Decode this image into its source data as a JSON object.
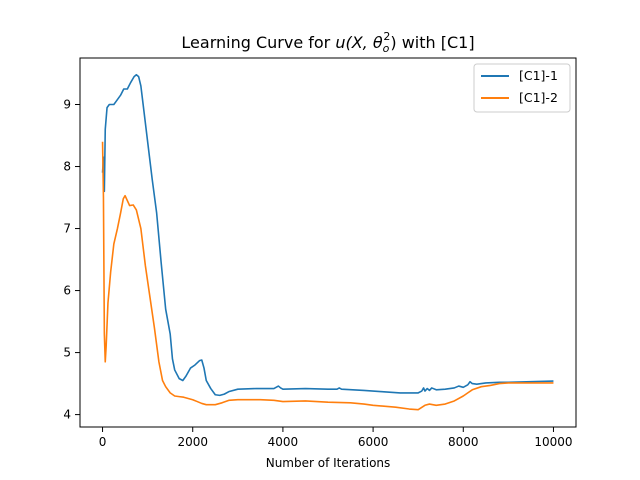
{
  "chart_data": {
    "type": "line",
    "title": "Learning Curve for u(X, θo²) with [C1]",
    "title_parts": {
      "prefix": "Learning Curve for ",
      "math_open": "u(X, θ",
      "math_sub": "o",
      "math_sup": "2",
      "math_close": ")",
      "suffix": " with [C1]"
    },
    "xlabel": "Number of Iterations",
    "ylabel": "",
    "xlim": [
      -500,
      10500
    ],
    "ylim": [
      3.8,
      9.75
    ],
    "xticks": [
      0,
      2000,
      4000,
      6000,
      8000,
      10000
    ],
    "xtick_labels": [
      "0",
      "2000",
      "4000",
      "6000",
      "8000",
      "10000"
    ],
    "yticks": [
      4,
      5,
      6,
      7,
      8,
      9
    ],
    "ytick_labels": [
      "4",
      "5",
      "6",
      "7",
      "8",
      "9"
    ],
    "grid": false,
    "legend_position": "top-right",
    "series": [
      {
        "name": "[C1]-1",
        "color": "#1f77b4",
        "points": [
          [
            0,
            7.9
          ],
          [
            20,
            8.15
          ],
          [
            40,
            7.6
          ],
          [
            60,
            8.6
          ],
          [
            100,
            8.95
          ],
          [
            150,
            9.0
          ],
          [
            250,
            9.0
          ],
          [
            300,
            9.05
          ],
          [
            400,
            9.15
          ],
          [
            470,
            9.25
          ],
          [
            550,
            9.25
          ],
          [
            620,
            9.35
          ],
          [
            700,
            9.45
          ],
          [
            750,
            9.48
          ],
          [
            800,
            9.45
          ],
          [
            850,
            9.3
          ],
          [
            900,
            9.0
          ],
          [
            1000,
            8.4
          ],
          [
            1100,
            7.8
          ],
          [
            1200,
            7.25
          ],
          [
            1300,
            6.45
          ],
          [
            1400,
            5.7
          ],
          [
            1450,
            5.5
          ],
          [
            1500,
            5.3
          ],
          [
            1550,
            4.9
          ],
          [
            1600,
            4.72
          ],
          [
            1700,
            4.58
          ],
          [
            1780,
            4.55
          ],
          [
            1850,
            4.62
          ],
          [
            1950,
            4.75
          ],
          [
            2050,
            4.8
          ],
          [
            2150,
            4.87
          ],
          [
            2200,
            4.88
          ],
          [
            2250,
            4.75
          ],
          [
            2300,
            4.55
          ],
          [
            2400,
            4.42
          ],
          [
            2500,
            4.32
          ],
          [
            2600,
            4.31
          ],
          [
            2700,
            4.33
          ],
          [
            2800,
            4.37
          ],
          [
            3000,
            4.41
          ],
          [
            3400,
            4.42
          ],
          [
            3800,
            4.42
          ],
          [
            3900,
            4.46
          ],
          [
            3950,
            4.43
          ],
          [
            4000,
            4.41
          ],
          [
            4500,
            4.42
          ],
          [
            5000,
            4.41
          ],
          [
            5200,
            4.41
          ],
          [
            5250,
            4.43
          ],
          [
            5300,
            4.41
          ],
          [
            5800,
            4.39
          ],
          [
            6200,
            4.37
          ],
          [
            6600,
            4.35
          ],
          [
            7000,
            4.35
          ],
          [
            7080,
            4.38
          ],
          [
            7120,
            4.43
          ],
          [
            7150,
            4.38
          ],
          [
            7200,
            4.42
          ],
          [
            7250,
            4.39
          ],
          [
            7300,
            4.43
          ],
          [
            7400,
            4.4
          ],
          [
            7600,
            4.41
          ],
          [
            7800,
            4.43
          ],
          [
            7900,
            4.46
          ],
          [
            8000,
            4.44
          ],
          [
            8100,
            4.48
          ],
          [
            8150,
            4.53
          ],
          [
            8200,
            4.5
          ],
          [
            8300,
            4.49
          ],
          [
            8500,
            4.51
          ],
          [
            8800,
            4.52
          ],
          [
            9000,
            4.52
          ],
          [
            9500,
            4.53
          ],
          [
            10000,
            4.54
          ]
        ]
      },
      {
        "name": "[C1]-2",
        "color": "#ff7f0e",
        "points": [
          [
            0,
            8.4
          ],
          [
            20,
            7.5
          ],
          [
            40,
            5.3
          ],
          [
            60,
            4.85
          ],
          [
            80,
            5.1
          ],
          [
            120,
            5.8
          ],
          [
            180,
            6.3
          ],
          [
            250,
            6.75
          ],
          [
            330,
            7.0
          ],
          [
            400,
            7.25
          ],
          [
            460,
            7.48
          ],
          [
            500,
            7.53
          ],
          [
            550,
            7.45
          ],
          [
            600,
            7.37
          ],
          [
            680,
            7.38
          ],
          [
            750,
            7.3
          ],
          [
            850,
            7.0
          ],
          [
            950,
            6.4
          ],
          [
            1050,
            5.9
          ],
          [
            1150,
            5.4
          ],
          [
            1250,
            4.85
          ],
          [
            1330,
            4.55
          ],
          [
            1400,
            4.45
          ],
          [
            1500,
            4.35
          ],
          [
            1600,
            4.3
          ],
          [
            1700,
            4.29
          ],
          [
            1800,
            4.28
          ],
          [
            1900,
            4.26
          ],
          [
            2000,
            4.24
          ],
          [
            2100,
            4.21
          ],
          [
            2200,
            4.18
          ],
          [
            2300,
            4.16
          ],
          [
            2500,
            4.16
          ],
          [
            2650,
            4.19
          ],
          [
            2800,
            4.23
          ],
          [
            3000,
            4.24
          ],
          [
            3500,
            4.24
          ],
          [
            3800,
            4.23
          ],
          [
            4000,
            4.21
          ],
          [
            4500,
            4.22
          ],
          [
            5000,
            4.2
          ],
          [
            5500,
            4.19
          ],
          [
            5800,
            4.17
          ],
          [
            6000,
            4.15
          ],
          [
            6500,
            4.12
          ],
          [
            6800,
            4.09
          ],
          [
            7000,
            4.08
          ],
          [
            7150,
            4.15
          ],
          [
            7250,
            4.17
          ],
          [
            7400,
            4.15
          ],
          [
            7600,
            4.17
          ],
          [
            7800,
            4.22
          ],
          [
            8000,
            4.3
          ],
          [
            8100,
            4.35
          ],
          [
            8200,
            4.4
          ],
          [
            8400,
            4.45
          ],
          [
            8600,
            4.47
          ],
          [
            8800,
            4.5
          ],
          [
            9000,
            4.51
          ],
          [
            9500,
            4.51
          ],
          [
            10000,
            4.51
          ]
        ]
      }
    ]
  }
}
